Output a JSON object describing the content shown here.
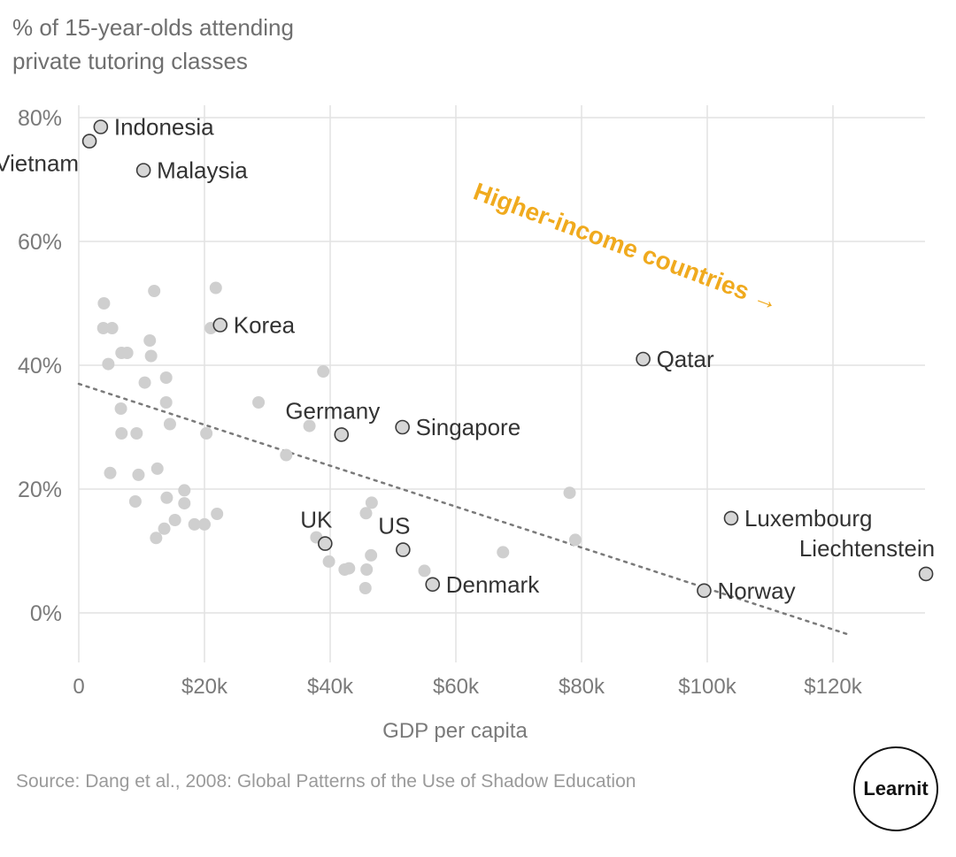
{
  "chart_data": {
    "type": "scatter",
    "title": "",
    "ylabel_lines": [
      "% of 15-year-olds attending",
      "private tutoring classes"
    ],
    "xlabel": "GDP per capita",
    "xlim": [
      0,
      135000
    ],
    "ylim": [
      -8,
      82
    ],
    "x_ticks": [
      {
        "value": 0,
        "label": "0"
      },
      {
        "value": 20000,
        "label": "$20k"
      },
      {
        "value": 40000,
        "label": "$40k"
      },
      {
        "value": 60000,
        "label": "$60k"
      },
      {
        "value": 80000,
        "label": "$80k"
      },
      {
        "value": 100000,
        "label": "$100k"
      },
      {
        "value": 120000,
        "label": "$120k"
      }
    ],
    "y_ticks": [
      {
        "value": 0,
        "label": "0%"
      },
      {
        "value": 20,
        "label": "20%"
      },
      {
        "value": 40,
        "label": "40%"
      },
      {
        "value": 60,
        "label": "60%"
      },
      {
        "value": 80,
        "label": "80%"
      }
    ],
    "trend_line": {
      "x": [
        0,
        122500
      ],
      "y": [
        37,
        -3.5
      ]
    },
    "annotation": "Higher-income countries →",
    "colors": {
      "background_point": "#cfcfcf",
      "labeled_point_fill": "#d6d6d6",
      "labeled_point_stroke": "#3c3c3c",
      "label_text": "#333333",
      "annotation": "#f0aa1e",
      "grid": "#e2e2e2",
      "tick_text": "#7a7a7a",
      "trend_line": "#7a7a7a"
    },
    "labeled_points": [
      {
        "name": "Indonesia",
        "x": 3500,
        "y": 78.5,
        "anchor": "start"
      },
      {
        "name": "Vietnam",
        "x": 1700,
        "y": 76.2,
        "anchor": "end"
      },
      {
        "name": "Malaysia",
        "x": 10300,
        "y": 71.5,
        "anchor": "start"
      },
      {
        "name": "Korea",
        "x": 22500,
        "y": 46.5,
        "anchor": "start"
      },
      {
        "name": "Qatar",
        "x": 89800,
        "y": 41.0,
        "anchor": "start"
      },
      {
        "name": "Germany",
        "x": 41800,
        "y": 28.8,
        "anchor": "above"
      },
      {
        "name": "Singapore",
        "x": 51500,
        "y": 30.0,
        "anchor": "start"
      },
      {
        "name": "UK",
        "x": 39200,
        "y": 11.2,
        "anchor": "above"
      },
      {
        "name": "US",
        "x": 51600,
        "y": 10.2,
        "anchor": "above"
      },
      {
        "name": "Denmark",
        "x": 56300,
        "y": 4.6,
        "anchor": "start"
      },
      {
        "name": "Luxembourg",
        "x": 103800,
        "y": 15.3,
        "anchor": "start"
      },
      {
        "name": "Liechtenstein",
        "x": 134800,
        "y": 6.3,
        "anchor": "above-end"
      },
      {
        "name": "Norway",
        "x": 99500,
        "y": 3.6,
        "anchor": "start"
      }
    ],
    "other_points": [
      {
        "x": 4000,
        "y": 50.0
      },
      {
        "x": 12000,
        "y": 52.0
      },
      {
        "x": 21800,
        "y": 52.5
      },
      {
        "x": 3900,
        "y": 46.0
      },
      {
        "x": 5300,
        "y": 46.0
      },
      {
        "x": 21000,
        "y": 46.0
      },
      {
        "x": 11300,
        "y": 44.0
      },
      {
        "x": 6800,
        "y": 42.0
      },
      {
        "x": 7700,
        "y": 42.0
      },
      {
        "x": 11500,
        "y": 41.5
      },
      {
        "x": 4700,
        "y": 40.2
      },
      {
        "x": 38900,
        "y": 39.0
      },
      {
        "x": 13900,
        "y": 38.0
      },
      {
        "x": 10500,
        "y": 37.2
      },
      {
        "x": 13900,
        "y": 34.0
      },
      {
        "x": 28600,
        "y": 34.0
      },
      {
        "x": 6700,
        "y": 33.0
      },
      {
        "x": 14500,
        "y": 30.5
      },
      {
        "x": 36700,
        "y": 30.2
      },
      {
        "x": 6800,
        "y": 29.0
      },
      {
        "x": 9200,
        "y": 29.0
      },
      {
        "x": 20300,
        "y": 29.0
      },
      {
        "x": 33000,
        "y": 25.5
      },
      {
        "x": 12500,
        "y": 23.3
      },
      {
        "x": 5000,
        "y": 22.6
      },
      {
        "x": 9500,
        "y": 22.3
      },
      {
        "x": 16800,
        "y": 19.8
      },
      {
        "x": 78100,
        "y": 19.4
      },
      {
        "x": 14000,
        "y": 18.6
      },
      {
        "x": 46600,
        "y": 17.8
      },
      {
        "x": 16800,
        "y": 17.7
      },
      {
        "x": 9000,
        "y": 18.0
      },
      {
        "x": 22000,
        "y": 16.0
      },
      {
        "x": 45700,
        "y": 16.1
      },
      {
        "x": 15300,
        "y": 15.0
      },
      {
        "x": 18400,
        "y": 14.3
      },
      {
        "x": 20000,
        "y": 14.3
      },
      {
        "x": 13600,
        "y": 13.6
      },
      {
        "x": 37800,
        "y": 12.2
      },
      {
        "x": 12300,
        "y": 12.1
      },
      {
        "x": 79000,
        "y": 11.8
      },
      {
        "x": 67500,
        "y": 9.8
      },
      {
        "x": 46500,
        "y": 9.3
      },
      {
        "x": 39800,
        "y": 8.3
      },
      {
        "x": 43000,
        "y": 7.2
      },
      {
        "x": 42300,
        "y": 7.0
      },
      {
        "x": 45800,
        "y": 7.0
      },
      {
        "x": 55000,
        "y": 6.8
      },
      {
        "x": 45600,
        "y": 4.0
      }
    ]
  },
  "source_text": "Source: Dang et al., 2008: Global Patterns of the Use of Shadow Education",
  "logo_text": "Learnit"
}
